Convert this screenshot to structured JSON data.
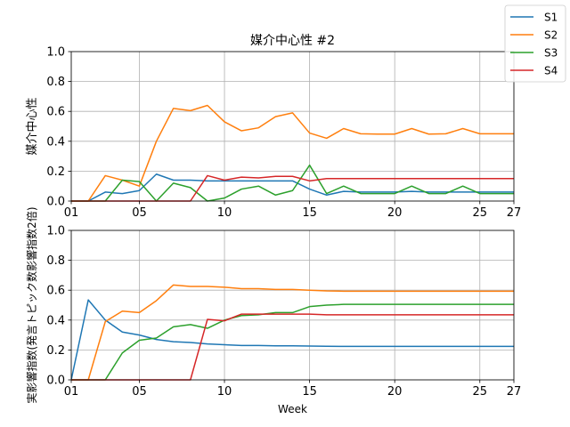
{
  "chart_data": [
    {
      "type": "line",
      "title": "媒介中心性 #2",
      "xlabel": "",
      "ylabel": "媒介中心性",
      "xlim": [
        1,
        27
      ],
      "ylim": [
        0,
        1.0
      ],
      "x_ticks": [
        1,
        5,
        10,
        15,
        20,
        25,
        27
      ],
      "x_tick_labels": [
        "01",
        "05",
        "10",
        "15",
        "20",
        "25",
        "27"
      ],
      "y_ticks": [
        0,
        0.2,
        0.4,
        0.6,
        0.8,
        1.0
      ],
      "y_tick_labels": [
        "0.0",
        "0.2",
        "0.4",
        "0.6",
        "0.8",
        "1.0"
      ],
      "grid": true,
      "x": [
        1,
        2,
        3,
        4,
        5,
        6,
        7,
        8,
        9,
        10,
        11,
        12,
        13,
        14,
        15,
        16,
        17,
        18,
        19,
        20,
        21,
        22,
        23,
        24,
        25,
        26,
        27
      ],
      "series": [
        {
          "name": "S1",
          "color": "#1f77b4",
          "values": [
            0,
            0,
            0.06,
            0.05,
            0.07,
            0.18,
            0.14,
            0.14,
            0.135,
            0.135,
            0.135,
            0.135,
            0.135,
            0.135,
            0.08,
            0.04,
            0.065,
            0.06,
            0.06,
            0.06,
            0.065,
            0.06,
            0.06,
            0.06,
            0.06,
            0.06,
            0.06
          ]
        },
        {
          "name": "S2",
          "color": "#ff7f0e",
          "values": [
            0,
            0,
            0.17,
            0.14,
            0.1,
            0.4,
            0.62,
            0.605,
            0.64,
            0.53,
            0.47,
            0.49,
            0.565,
            0.59,
            0.455,
            0.42,
            0.485,
            0.45,
            0.448,
            0.448,
            0.485,
            0.448,
            0.45,
            0.485,
            0.45,
            0.45,
            0.45
          ]
        },
        {
          "name": "S3",
          "color": "#2ca02c",
          "values": [
            0,
            0,
            0,
            0.14,
            0.13,
            0,
            0.12,
            0.09,
            0,
            0.02,
            0.08,
            0.1,
            0.04,
            0.07,
            0.24,
            0.05,
            0.1,
            0.05,
            0.05,
            0.05,
            0.1,
            0.05,
            0.05,
            0.1,
            0.05,
            0.05,
            0.05
          ]
        },
        {
          "name": "S4",
          "color": "#d62728",
          "values": [
            0,
            0,
            0,
            0,
            0,
            0,
            0,
            0,
            0.17,
            0.14,
            0.16,
            0.155,
            0.165,
            0.165,
            0.135,
            0.15,
            0.15,
            0.15,
            0.15,
            0.15,
            0.15,
            0.15,
            0.15,
            0.15,
            0.15,
            0.15,
            0.15
          ]
        }
      ]
    },
    {
      "type": "line",
      "title": "",
      "xlabel": "Week",
      "ylabel": "実影響指数(発言トピック数影響指数2倍)",
      "xlim": [
        1,
        27
      ],
      "ylim": [
        0,
        1.0
      ],
      "x_ticks": [
        1,
        5,
        10,
        15,
        20,
        25,
        27
      ],
      "x_tick_labels": [
        "01",
        "05",
        "10",
        "15",
        "20",
        "25",
        "27"
      ],
      "y_ticks": [
        0,
        0.2,
        0.4,
        0.6,
        0.8,
        1.0
      ],
      "y_tick_labels": [
        "0.0",
        "0.2",
        "0.4",
        "0.6",
        "0.8",
        "1.0"
      ],
      "grid": true,
      "x": [
        1,
        2,
        3,
        4,
        5,
        6,
        7,
        8,
        9,
        10,
        11,
        12,
        13,
        14,
        15,
        16,
        17,
        18,
        19,
        20,
        21,
        22,
        23,
        24,
        25,
        26,
        27
      ],
      "series": [
        {
          "name": "S1",
          "color": "#1f77b4",
          "values": [
            0,
            0.535,
            0.4,
            0.32,
            0.3,
            0.27,
            0.255,
            0.25,
            0.24,
            0.235,
            0.23,
            0.23,
            0.228,
            0.228,
            0.226,
            0.225,
            0.224,
            0.224,
            0.224,
            0.224,
            0.224,
            0.224,
            0.224,
            0.224,
            0.224,
            0.224,
            0.224
          ]
        },
        {
          "name": "S2",
          "color": "#ff7f0e",
          "values": [
            0,
            0,
            0.39,
            0.46,
            0.45,
            0.53,
            0.635,
            0.625,
            0.625,
            0.62,
            0.61,
            0.61,
            0.605,
            0.605,
            0.6,
            0.595,
            0.593,
            0.593,
            0.593,
            0.593,
            0.593,
            0.593,
            0.593,
            0.593,
            0.593,
            0.593,
            0.593
          ]
        },
        {
          "name": "S3",
          "color": "#2ca02c",
          "values": [
            0,
            0,
            0,
            0.18,
            0.265,
            0.28,
            0.355,
            0.37,
            0.345,
            0.4,
            0.43,
            0.435,
            0.45,
            0.45,
            0.49,
            0.5,
            0.505,
            0.505,
            0.505,
            0.505,
            0.505,
            0.505,
            0.505,
            0.505,
            0.505,
            0.505,
            0.505
          ]
        },
        {
          "name": "S4",
          "color": "#d62728",
          "values": [
            0,
            0,
            0,
            0,
            0,
            0,
            0,
            0,
            0.405,
            0.395,
            0.44,
            0.44,
            0.44,
            0.44,
            0.44,
            0.435,
            0.435,
            0.435,
            0.435,
            0.435,
            0.435,
            0.435,
            0.435,
            0.435,
            0.435,
            0.435,
            0.435
          ]
        }
      ]
    }
  ],
  "legend": {
    "placement": "top-right",
    "entries": [
      {
        "name": "S1",
        "color": "#1f77b4"
      },
      {
        "name": "S2",
        "color": "#ff7f0e"
      },
      {
        "name": "S3",
        "color": "#2ca02c"
      },
      {
        "name": "S4",
        "color": "#d62728"
      }
    ]
  }
}
